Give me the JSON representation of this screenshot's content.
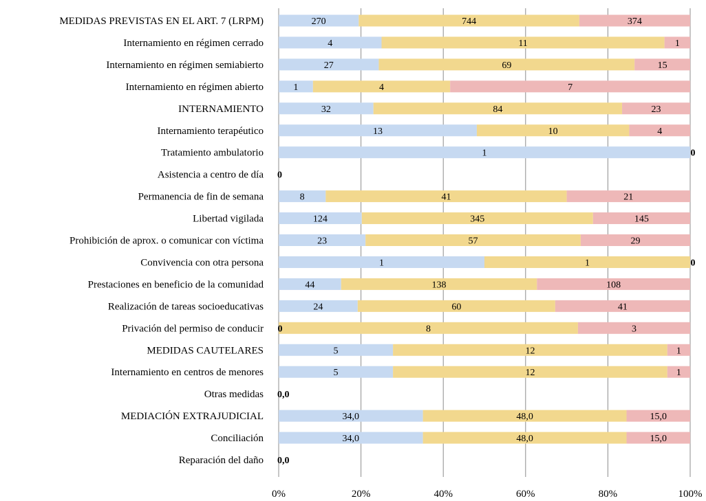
{
  "chart_data": {
    "type": "bar",
    "orientation": "horizontal",
    "stacked": "percent",
    "xlim": [
      0,
      100
    ],
    "x_ticks": [
      "0%",
      "20%",
      "40%",
      "60%",
      "80%",
      "100%"
    ],
    "grid": "vertical",
    "legend": "none",
    "categories": [
      "MEDIDAS PREVISTAS EN EL ART. 7 (LRPM)",
      "Internamiento en régimen cerrado",
      "Internamiento en régimen semiabierto",
      "Internamiento en régimen abierto",
      "INTERNAMIENTO",
      "Internamiento terapéutico",
      "Tratamiento ambulatorio",
      "Asistencia a centro de día",
      "Permanencia de fin de semana",
      "Libertad vigilada",
      "Prohibición de aprox. o comunicar con víctima",
      "Convivencia con otra persona",
      "Prestaciones en beneficio de la comunidad",
      "Realización de tareas socioeducativas",
      "Privación del permiso de conducir",
      "MEDIDAS CAUTELARES",
      "Internamiento en centros de menores",
      "Otras medidas",
      "MEDIACIÓN EXTRAJUDICIAL",
      "Conciliación",
      "Reparación del daño"
    ],
    "series": [
      {
        "color": "#c6d9f1",
        "values": [
          270,
          4,
          27,
          1,
          32,
          13,
          1,
          0,
          8,
          124,
          23,
          1,
          44,
          24,
          0,
          5,
          5,
          0,
          34,
          34,
          0
        ],
        "labels": [
          "270",
          "4",
          "27",
          "1",
          "32",
          "13",
          "1",
          "0",
          "8",
          "124",
          "23",
          "1",
          "44",
          "24",
          "0",
          "5",
          "5",
          "0,0",
          "34,0",
          "34,0",
          "0,0"
        ]
      },
      {
        "color": "#f2d88e",
        "values": [
          744,
          11,
          69,
          4,
          84,
          10,
          0,
          0,
          41,
          345,
          57,
          1,
          138,
          60,
          8,
          12,
          12,
          0,
          48,
          48,
          0
        ],
        "labels": [
          "744",
          "11",
          "69",
          "4",
          "84",
          "10",
          "",
          "",
          "41",
          "345",
          "57",
          "1",
          "138",
          "60",
          "8",
          "12",
          "12",
          "",
          "48,0",
          "48,0",
          ""
        ]
      },
      {
        "color": "#eeb8b8",
        "values": [
          374,
          1,
          15,
          7,
          23,
          4,
          0,
          0,
          21,
          145,
          29,
          0,
          108,
          41,
          3,
          1,
          1,
          0,
          15,
          15,
          0
        ],
        "labels": [
          "374",
          "1",
          "15",
          "7",
          "23",
          "4",
          "0",
          "",
          "21",
          "145",
          "29",
          "0",
          "108",
          "41",
          "3",
          "1",
          "1",
          "",
          "15,0",
          "15,0",
          ""
        ]
      }
    ]
  }
}
